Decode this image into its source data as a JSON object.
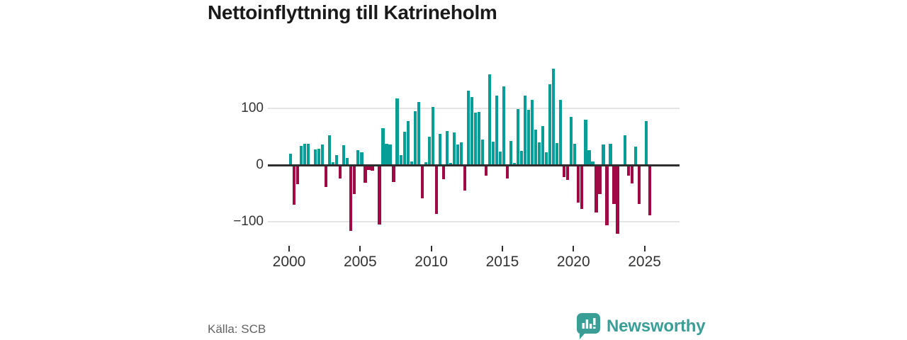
{
  "title": "Nettoinflyttning till Katrineholm",
  "source": "Källa: SCB",
  "brand": {
    "name": "Newsworthy",
    "color": "#3a9e97"
  },
  "chart_data": {
    "type": "bar",
    "title": "Nettoinflyttning till Katrineholm",
    "frequency": "quarterly",
    "x_start": {
      "year": 2000,
      "quarter": 1
    },
    "values": [
      20,
      -69,
      -32,
      34,
      37,
      38,
      0,
      28,
      29,
      36,
      -38,
      52,
      5,
      17,
      -23,
      35,
      13,
      -115,
      -50,
      26,
      22,
      -30,
      -7,
      -9,
      0,
      -104,
      65,
      38,
      36,
      -29,
      117,
      17,
      59,
      78,
      6,
      95,
      111,
      -57,
      5,
      50,
      102,
      -85,
      55,
      -24,
      60,
      4,
      57,
      36,
      40,
      -44,
      131,
      120,
      92,
      94,
      45,
      -17,
      160,
      41,
      122,
      24,
      139,
      -22,
      42,
      4,
      99,
      25,
      122,
      97,
      115,
      62,
      40,
      69,
      23,
      143,
      170,
      39,
      115,
      -20,
      -25,
      85,
      38,
      -65,
      -76,
      80,
      26,
      6,
      -82,
      -50,
      36,
      -105,
      38,
      -67,
      -120,
      0,
      52,
      -17,
      -31,
      33,
      -67,
      0,
      77,
      -87
    ],
    "x_tick_years": [
      2000,
      2005,
      2010,
      2015,
      2020,
      2025
    ],
    "y_ticks": [
      {
        "value": 100,
        "label": "100"
      },
      {
        "value": 0,
        "label": "0"
      },
      {
        "value": -100,
        "label": "−100"
      }
    ],
    "ylim": [
      -130,
      185
    ],
    "grid": true,
    "legend": false,
    "colors": {
      "positive": "#069e96",
      "negative": "#a00944"
    }
  }
}
